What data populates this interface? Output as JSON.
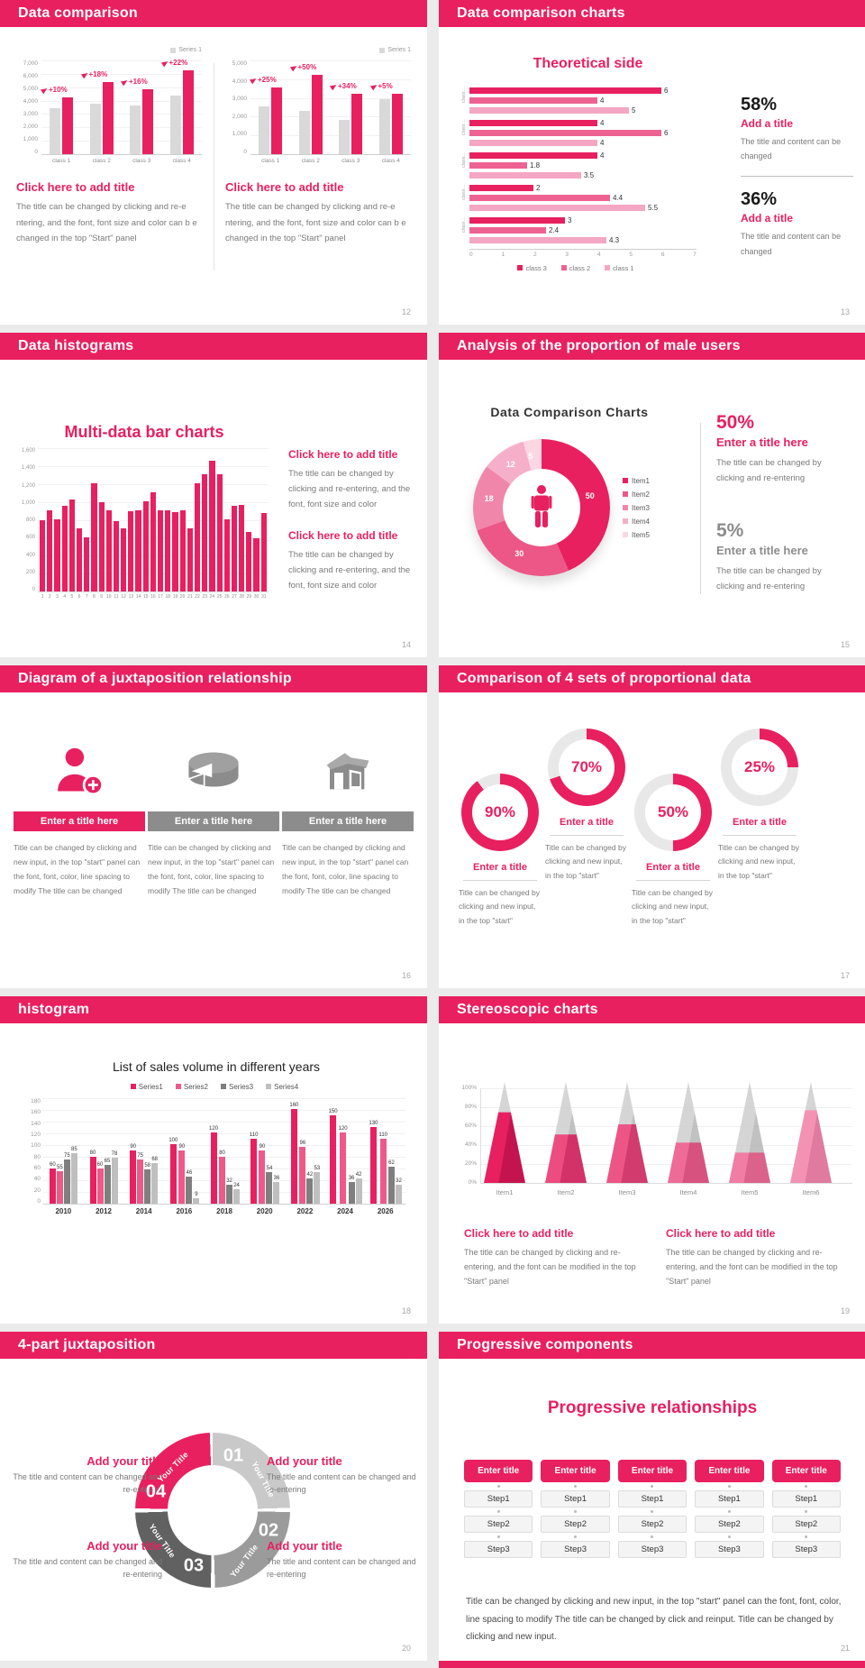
{
  "colors": {
    "accent": "#E8205F",
    "accent_mid": "#EE6292",
    "accent_light": "#F4A6C2",
    "gray_bar": "#D9D9D9",
    "page_bg": "#EBEBEB",
    "pagenum": "#A8A8A8"
  },
  "slides": {
    "s12": {
      "header": "Data comparison",
      "page": "12",
      "panels": [
        {
          "title": "Click here to add title",
          "body": "The title can be changed by clicking and re-e ntering, and the font, font size and color can b e changed in the top \"Start\" panel"
        },
        {
          "title": "Click here to add title",
          "body": "The title can be changed by clicking and re-e ntering, and the font, font size and color can b e changed in the top \"Start\" panel"
        }
      ]
    },
    "s13": {
      "header": "Data comparison charts",
      "page": "13",
      "stats": [
        {
          "pct": "58%",
          "title": "Add a title",
          "body": "The title and content can be changed"
        },
        {
          "pct": "36%",
          "title": "Add a title",
          "body": "The title and content can be changed"
        }
      ]
    },
    "s14": {
      "header": "Data histograms",
      "page": "14",
      "blocks": [
        {
          "title": "Click here to add title",
          "body": "The title can be changed by clicking and re-entering, and the font, font size and color"
        },
        {
          "title": "Click here to add title",
          "body": "The title can be changed by clicking and re-entering, and the font, font size and color"
        }
      ]
    },
    "s15": {
      "header": "Analysis of the proportion of male users",
      "page": "15",
      "stats": [
        {
          "pct": "50%",
          "title": "Enter a title here",
          "body": "The title can be changed by clicking and re-entering"
        },
        {
          "pct": "5%",
          "title": "Enter a title here",
          "body": "The title can be changed by clicking and re-entering"
        }
      ]
    },
    "s16": {
      "header": "Diagram of a juxtaposition relationship",
      "page": "16",
      "title": "Enter a title here",
      "body": "Title can be changed by clicking and new input, in the top \"start\" panel can the font, font, color, line spacing to modify The title can be changed"
    },
    "s17": {
      "header": "Comparison of 4 sets of proportional data",
      "page": "17",
      "title": "Enter a title",
      "body": "Title can be changed by clicking and new input, in the top \"start\""
    },
    "s18": {
      "header": "histogram",
      "page": "18"
    },
    "s19": {
      "header": "Stereoscopic charts",
      "page": "19",
      "blocks": [
        {
          "title": "Click here to add title",
          "body": "The title can be changed by clicking and re-entering, and the font can be modified in the top \"Start\" panel"
        },
        {
          "title": "Click here to add title",
          "body": "The title can be changed by clicking and re-entering, and the font can be modified in the top \"Start\" panel"
        }
      ]
    },
    "s20": {
      "header": "4-part juxtaposition",
      "page": "20",
      "nums": [
        "01",
        "02",
        "03",
        "04"
      ],
      "rot_label": "Your Title",
      "blocks": [
        {
          "title": "Add your title",
          "body": "The title and content can be changed and re-entering"
        },
        {
          "title": "Add your title",
          "body": "The title and content can be changed and re-entering"
        },
        {
          "title": "Add your title",
          "body": "The title and content can be changed and re-entering"
        },
        {
          "title": "Add your title",
          "body": "The title and content can be changed and re-entering"
        }
      ]
    },
    "s21": {
      "header": "Progressive components",
      "page": "21",
      "title": "Progressive relationships",
      "button": "Enter title",
      "steps": [
        "Step1",
        "Step2",
        "Step3"
      ],
      "body": "Title can be changed by clicking and new input, in the top \"start\" panel can the font, font, color, line spacing to modify The title can be changed by click and reinput. Title can be changed by clicking and new input."
    }
  },
  "charts": {
    "s12a": {
      "type": "pairbar",
      "legend": "Series 1",
      "ymax": 7000,
      "yticks": [
        "7,000",
        "6,000",
        "5,000",
        "4,000",
        "3,000",
        "2,000",
        "1,000",
        "0"
      ],
      "categories": [
        "class 1",
        "class 2",
        "class 3",
        "class 4"
      ],
      "base": [
        3400,
        3700,
        3600,
        4300
      ],
      "accent": [
        4200,
        5300,
        4800,
        6200
      ],
      "labels": [
        "+10%",
        "+18%",
        "+16%",
        "+22%"
      ]
    },
    "s12b": {
      "type": "pairbar",
      "legend": "Series 1",
      "ymax": 5000,
      "yticks": [
        "5,000",
        "4,000",
        "3,000",
        "2,000",
        "1,000",
        "0"
      ],
      "categories": [
        "class 1",
        "class 2",
        "class 3",
        "class 4"
      ],
      "base": [
        2500,
        2300,
        1800,
        2900
      ],
      "accent": [
        3500,
        4200,
        3200,
        3200
      ],
      "labels": [
        "+25%",
        "+50%",
        "+34%",
        "+5%"
      ]
    },
    "s13": {
      "type": "hbar",
      "title": "Theoretical side",
      "xmax": 7,
      "xticks": [
        "0",
        "1",
        "2",
        "3",
        "4",
        "5",
        "6",
        "7"
      ],
      "row_label": "class…",
      "groups": [
        [
          6,
          4,
          5
        ],
        [
          4,
          6,
          4
        ],
        [
          4,
          1.8,
          3.5
        ],
        [
          2,
          4.4,
          5.5
        ],
        [
          3,
          2.4,
          4.3
        ]
      ],
      "legend": [
        "class 3",
        "class 2",
        "class 1"
      ]
    },
    "s14": {
      "type": "bars",
      "title": "Multi-data bar charts",
      "ymax": 1600,
      "yticks": [
        "1,600",
        "1,400",
        "1,200",
        "1,000",
        "800",
        "600",
        "400",
        "200",
        "0"
      ],
      "values": [
        790,
        900,
        800,
        950,
        1020,
        700,
        600,
        1200,
        990,
        900,
        780,
        700,
        890,
        900,
        1000,
        1100,
        900,
        900,
        880,
        900,
        700,
        1200,
        1300,
        1450,
        1300,
        800,
        950,
        960,
        660,
        590,
        870
      ]
    },
    "s15": {
      "type": "donut",
      "title": "Data Comparison Charts",
      "values": [
        50,
        30,
        18,
        12,
        5
      ],
      "colors": [
        "#E8205F",
        "#EC5787",
        "#F186AB",
        "#F6AFC9",
        "#FBD7E3"
      ],
      "legend": [
        "Item1",
        "Item2",
        "Item3",
        "Item4",
        "Item5"
      ]
    },
    "s17": {
      "type": "rings",
      "values": [
        90,
        70,
        50,
        25
      ],
      "pcts": [
        "90%",
        "70%",
        "50%",
        "25%"
      ]
    },
    "s18": {
      "type": "groupbar",
      "title": "List of sales volume in different years",
      "ymax": 180,
      "ystep": 20,
      "categories": [
        "2010",
        "2012",
        "2014",
        "2016",
        "2018",
        "2020",
        "2022",
        "2024",
        "2026"
      ],
      "colors": [
        "#E8205F",
        "#EF5988",
        "#7F7F7F",
        "#BFBFBF"
      ],
      "series": [
        {
          "name": "Series1",
          "values": [
            60,
            80,
            90,
            100,
            120,
            110,
            160,
            150,
            130
          ]
        },
        {
          "name": "Series2",
          "values": [
            55,
            60,
            75,
            90,
            80,
            90,
            96,
            120,
            110
          ]
        },
        {
          "name": "Series3",
          "values": [
            75,
            65,
            58,
            46,
            32,
            54,
            42,
            36,
            62
          ]
        },
        {
          "name": "Series4",
          "values": [
            85,
            78,
            68,
            9,
            24,
            36,
            53,
            42,
            32
          ]
        }
      ]
    },
    "s19": {
      "type": "pyramid",
      "items": [
        "Item1",
        "Item2",
        "Item3",
        "Item4",
        "Item5",
        "Item6"
      ],
      "fractions": [
        0.7,
        0.48,
        0.58,
        0.4,
        0.3,
        0.72
      ],
      "pinks": [
        [
          "#E8205F",
          "#C41450"
        ],
        [
          "#EC4C80",
          "#D23268"
        ],
        [
          "#EC5586",
          "#D23B6E"
        ],
        [
          "#EF6B97",
          "#D85280"
        ],
        [
          "#F17CA4",
          "#DB628B"
        ],
        [
          "#F492B4",
          "#E07A9E"
        ]
      ],
      "yticks": [
        "100%",
        "80%",
        "60%",
        "40%",
        "20%",
        "0%"
      ]
    }
  }
}
